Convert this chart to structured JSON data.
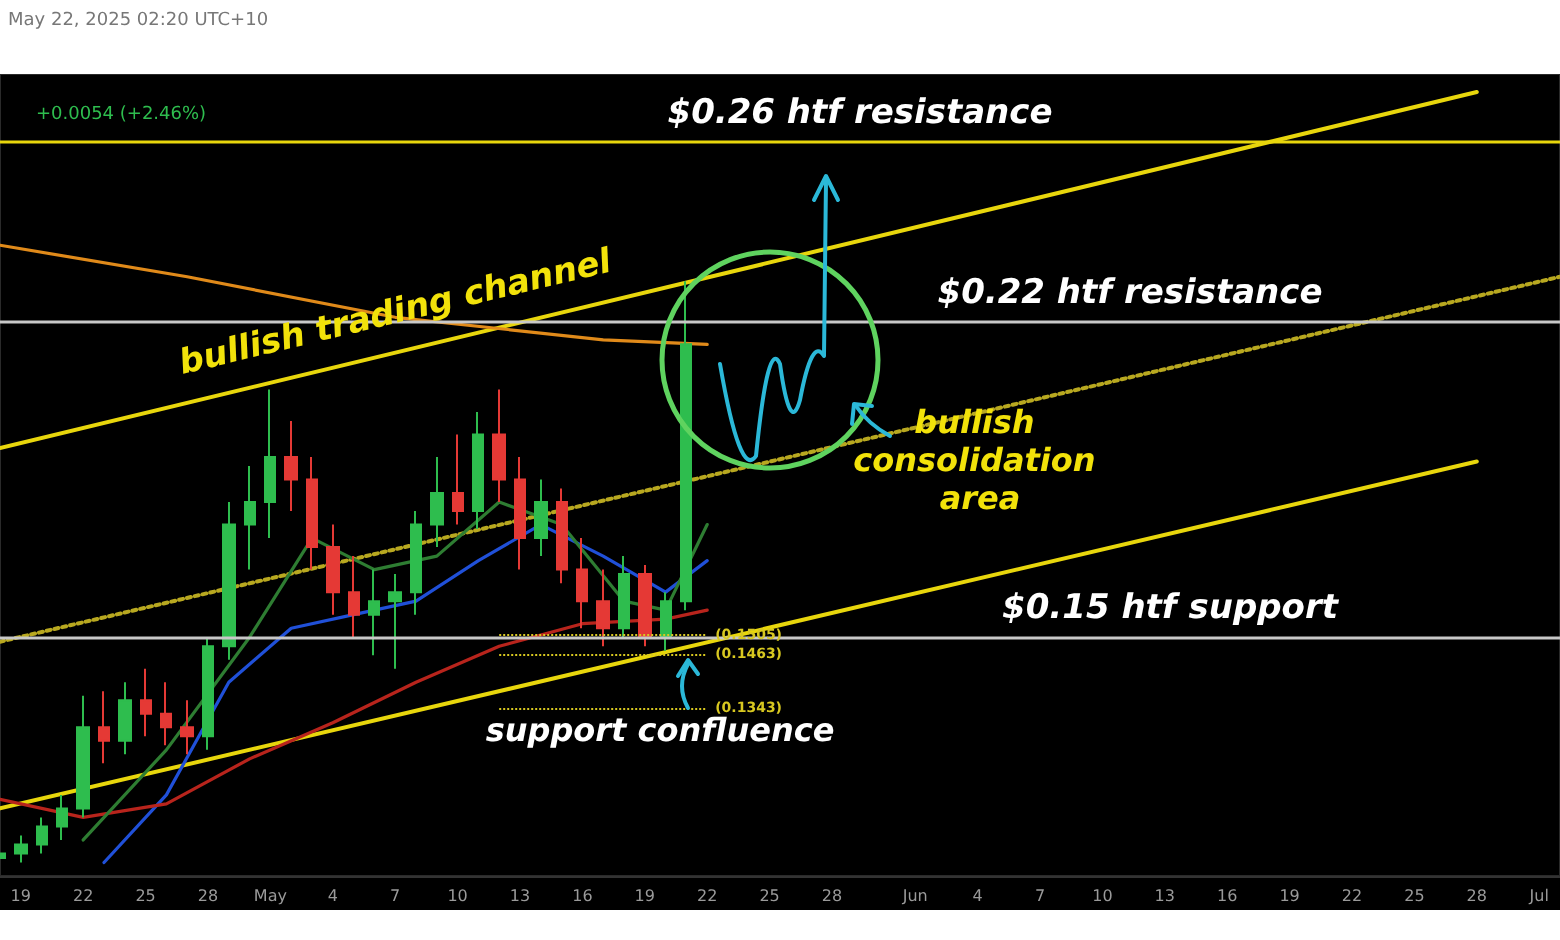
{
  "chart_data": {
    "type": "candlestick",
    "marker": "none",
    "tick_labels": "x",
    "grid": false,
    "x": [
      "2025-04-18",
      "2025-04-19",
      "2025-04-20",
      "2025-04-21",
      "2025-04-22",
      "2025-04-23",
      "2025-04-24",
      "2025-04-25",
      "2025-04-26",
      "2025-04-27",
      "2025-04-28",
      "2025-04-29",
      "2025-04-30",
      "2025-05-01",
      "2025-05-02",
      "2025-05-03",
      "2025-05-04",
      "2025-05-05",
      "2025-05-06",
      "2025-05-07",
      "2025-05-08",
      "2025-05-09",
      "2025-05-10",
      "2025-05-11",
      "2025-05-12",
      "2025-05-13",
      "2025-05-14",
      "2025-05-15",
      "2025-05-16",
      "2025-05-17",
      "2025-05-18",
      "2025-05-19",
      "2025-05-20",
      "2025-05-21"
    ],
    "ohlc": [
      [
        0.101,
        0.104,
        0.1,
        0.102
      ],
      [
        0.102,
        0.106,
        0.1,
        0.104
      ],
      [
        0.104,
        0.11,
        0.102,
        0.108
      ],
      [
        0.108,
        0.115,
        0.105,
        0.112
      ],
      [
        0.112,
        0.137,
        0.11,
        0.13
      ],
      [
        0.13,
        0.138,
        0.122,
        0.127
      ],
      [
        0.127,
        0.14,
        0.124,
        0.136
      ],
      [
        0.136,
        0.143,
        0.128,
        0.133
      ],
      [
        0.133,
        0.14,
        0.126,
        0.13
      ],
      [
        0.13,
        0.136,
        0.124,
        0.128
      ],
      [
        0.128,
        0.15,
        0.125,
        0.148
      ],
      [
        0.148,
        0.18,
        0.145,
        0.175
      ],
      [
        0.175,
        0.188,
        0.165,
        0.18
      ],
      [
        0.18,
        0.205,
        0.172,
        0.19
      ],
      [
        0.19,
        0.198,
        0.178,
        0.185
      ],
      [
        0.185,
        0.19,
        0.165,
        0.17
      ],
      [
        0.17,
        0.175,
        0.155,
        0.16
      ],
      [
        0.16,
        0.168,
        0.15,
        0.155
      ],
      [
        0.155,
        0.165,
        0.146,
        0.158
      ],
      [
        0.158,
        0.164,
        0.143,
        0.16
      ],
      [
        0.16,
        0.178,
        0.155,
        0.175
      ],
      [
        0.175,
        0.19,
        0.17,
        0.182
      ],
      [
        0.182,
        0.195,
        0.175,
        0.178
      ],
      [
        0.178,
        0.2,
        0.174,
        0.195
      ],
      [
        0.195,
        0.205,
        0.18,
        0.185
      ],
      [
        0.185,
        0.19,
        0.165,
        0.172
      ],
      [
        0.172,
        0.185,
        0.168,
        0.18
      ],
      [
        0.18,
        0.183,
        0.162,
        0.165
      ],
      [
        0.165,
        0.172,
        0.152,
        0.158
      ],
      [
        0.158,
        0.165,
        0.148,
        0.152
      ],
      [
        0.152,
        0.168,
        0.15,
        0.164
      ],
      [
        0.164,
        0.166,
        0.148,
        0.15
      ],
      [
        0.15,
        0.16,
        0.147,
        0.158
      ],
      [
        0.158,
        0.229,
        0.156,
        0.215
      ]
    ],
    "series": [
      {
        "type": "line",
        "color": "#e8d60c",
        "line_style": "solid",
        "x": [
          "2025-04-18",
          "2025-06-28"
        ],
        "values": [
          0.192,
          0.271
        ]
      },
      {
        "type": "line",
        "color": "#e8d60c",
        "line_style": "solid",
        "x": [
          "2025-04-18",
          "2025-06-28"
        ],
        "values": [
          0.112,
          0.189
        ]
      },
      {
        "type": "line",
        "color": "#b8a820",
        "line_style": "dotted",
        "x": [
          "2025-04-18",
          "2025-07-02"
        ],
        "values": [
          0.149,
          0.23
        ]
      },
      {
        "type": "line",
        "color": "#e08a1a",
        "line_style": "solid",
        "x": [
          "2025-04-18",
          "2025-04-27",
          "2025-05-07",
          "2025-05-17",
          "2025-05-22"
        ],
        "values": [
          0.237,
          0.23,
          0.221,
          0.216,
          0.215
        ]
      },
      {
        "type": "line",
        "color": "#2050d8",
        "line_style": "solid",
        "x": [
          "2025-04-23",
          "2025-04-26",
          "2025-04-29",
          "2025-05-02",
          "2025-05-05",
          "2025-05-08",
          "2025-05-11",
          "2025-05-14",
          "2025-05-17",
          "2025-05-20",
          "2025-05-22"
        ],
        "values": [
          0.1,
          0.115,
          0.14,
          0.152,
          0.155,
          0.158,
          0.167,
          0.175,
          0.168,
          0.16,
          0.167
        ]
      },
      {
        "type": "line",
        "color": "#b8241c",
        "line_style": "solid",
        "x": [
          "2025-04-18",
          "2025-04-22",
          "2025-04-26",
          "2025-04-30",
          "2025-05-04",
          "2025-05-08",
          "2025-05-12",
          "2025-05-16",
          "2025-05-20",
          "2025-05-22"
        ],
        "values": [
          0.114,
          0.11,
          0.113,
          0.123,
          0.131,
          0.14,
          0.148,
          0.153,
          0.154,
          0.156
        ]
      },
      {
        "type": "line",
        "color": "#2e7d32",
        "line_style": "solid",
        "x": [
          "2025-04-22",
          "2025-04-26",
          "2025-04-30",
          "2025-05-03",
          "2025-05-06",
          "2025-05-09",
          "2025-05-12",
          "2025-05-15",
          "2025-05-18",
          "2025-05-20",
          "2025-05-22"
        ],
        "values": [
          0.105,
          0.125,
          0.15,
          0.172,
          0.165,
          0.168,
          0.18,
          0.175,
          0.158,
          0.156,
          0.175
        ]
      }
    ],
    "xlim": [
      "2025-04-18",
      "2025-07-02"
    ],
    "xticks": [
      {
        "value": "2025-04-19",
        "label": "19"
      },
      {
        "value": "2025-04-22",
        "label": "22"
      },
      {
        "value": "2025-04-25",
        "label": "25"
      },
      {
        "value": "2025-04-28",
        "label": "28"
      },
      {
        "value": "2025-05-01",
        "label": "May"
      },
      {
        "value": "2025-05-04",
        "label": "4"
      },
      {
        "value": "2025-05-07",
        "label": "7"
      },
      {
        "value": "2025-05-10",
        "label": "10"
      },
      {
        "value": "2025-05-13",
        "label": "13"
      },
      {
        "value": "2025-05-16",
        "label": "16"
      },
      {
        "value": "2025-05-19",
        "label": "19"
      },
      {
        "value": "2025-05-22",
        "label": "22"
      },
      {
        "value": "2025-05-25",
        "label": "25"
      },
      {
        "value": "2025-05-28",
        "label": "28"
      },
      {
        "value": "2025-06-01",
        "label": "Jun"
      },
      {
        "value": "2025-06-04",
        "label": "4"
      },
      {
        "value": "2025-06-07",
        "label": "7"
      },
      {
        "value": "2025-06-10",
        "label": "10"
      },
      {
        "value": "2025-06-13",
        "label": "13"
      },
      {
        "value": "2025-06-16",
        "label": "16"
      },
      {
        "value": "2025-06-19",
        "label": "19"
      },
      {
        "value": "2025-06-22",
        "label": "22"
      },
      {
        "value": "2025-06-25",
        "label": "25"
      },
      {
        "value": "2025-06-28",
        "label": "28"
      },
      {
        "value": "2025-07-01",
        "label": "Jul"
      }
    ],
    "ylim": [
      0.097,
      0.275
    ],
    "ref_lines": [
      {
        "axis": "y",
        "value": 0.26,
        "label": "$0.26 htf resistance",
        "color": "#e8d60c",
        "line_style": "solid"
      },
      {
        "axis": "y",
        "value": 0.22,
        "label": "$0.22 htf resistance",
        "color": "#c8c8c8",
        "line_style": "solid"
      },
      {
        "axis": "y",
        "value": 0.15,
        "label": "$0.15 htf support",
        "color": "#c8c8c8",
        "line_style": "solid"
      },
      {
        "axis": "y",
        "value": 0.1505,
        "label": "(0.1505)",
        "color": "#d8c820",
        "line_style": "dotted"
      },
      {
        "axis": "y",
        "value": 0.1463,
        "label": "(0.1463)",
        "color": "#d8c820",
        "line_style": "dotted"
      },
      {
        "axis": "y",
        "value": 0.1343,
        "label": "(0.1343)",
        "color": "#d8c820",
        "line_style": "dotted"
      }
    ],
    "annotations": [
      "May 22, 2025 02:20 UTC+10",
      "+0.0054 (+2.46%)",
      {
        "text": "bullish trading channel",
        "x": "2025-05-07",
        "y": 0.222
      },
      "bullish consolidation area",
      "support confluence"
    ]
  }
}
